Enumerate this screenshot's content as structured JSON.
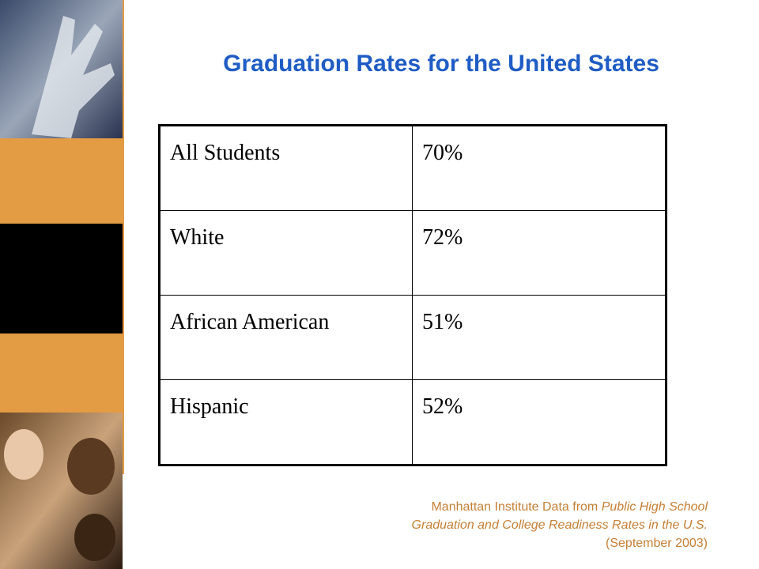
{
  "header": {
    "title": "Graduation Rates for the United States"
  },
  "table": {
    "rows": [
      [
        "All Students",
        "70%"
      ],
      [
        "White",
        "72%"
      ],
      [
        "African American",
        "51%"
      ],
      [
        "Hispanic",
        "52%"
      ]
    ]
  },
  "source": {
    "parts": [
      "Manhattan Institute Data from",
      "Public High School",
      "Graduation and College Readiness Rates  in the U.S.",
      "(September 2003)"
    ]
  }
}
